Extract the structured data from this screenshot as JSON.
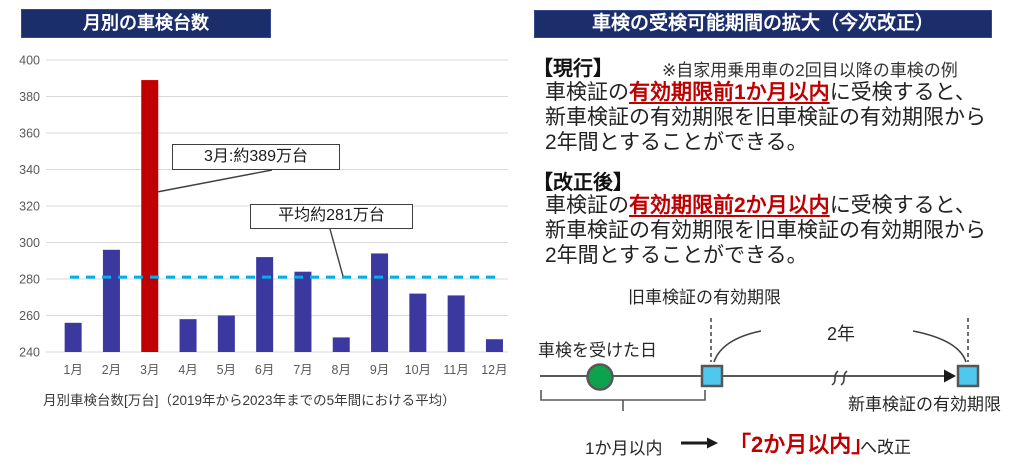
{
  "left_panel": {
    "title": "月別の車検台数",
    "caption": "月別車検台数[万台]（2019年から2023年までの5年間における平均）",
    "annotations": {
      "march_callout": "3月:約389万台",
      "average_callout": "平均約281万台"
    }
  },
  "chart_data": {
    "type": "bar",
    "title": "月別の車検台数",
    "categories": [
      "1月",
      "2月",
      "3月",
      "4月",
      "5月",
      "6月",
      "7月",
      "8月",
      "9月",
      "10月",
      "11月",
      "12月"
    ],
    "values": [
      256,
      296,
      389,
      258,
      260,
      292,
      284,
      248,
      294,
      272,
      271,
      247
    ],
    "highlight_index": 2,
    "average_line": {
      "value": 281,
      "label": "平均約281万台",
      "color": "#00B0F0"
    },
    "highlight_label": "3月:約389万台",
    "xlabel": "",
    "ylabel": "月別車検台数[万台]",
    "ylim": [
      240,
      400
    ],
    "ytick_step": 20,
    "grid": true,
    "bar_color": "#3B38A0",
    "highlight_color": "#C00000",
    "axis_text_color": "#595959"
  },
  "right_panel": {
    "title": "車検の受検可能期間の拡大（今次改正）",
    "note": "※自家用乗用車の2回目以降の車検の例",
    "current": {
      "heading": "【現行】",
      "line1_pre": "車検証の",
      "line1_red": "有効期限前1か月以内",
      "line1_post": "に受検すると、",
      "line2": "新車検証の有効期限を旧車検証の有効期限から",
      "line3": "2年間とすることができる。"
    },
    "revised": {
      "heading": "【改正後】",
      "line1_pre": "車検証の",
      "line1_red": "有効期限前2か月以内",
      "line1_post": "に受検すると、",
      "line2": "新車検証の有効期限を旧車検証の有効期限から",
      "line3": "2年間とすることができる。"
    },
    "timeline": {
      "old_expiry_label": "旧車検証の有効期限",
      "inspection_day_label": "車検を受けた日",
      "two_years_label": "2年",
      "new_expiry_label": "新車検証の有効期限",
      "before_label": "1か月以内",
      "after_label": "「2か月以内」",
      "after_suffix": "へ改正"
    }
  },
  "colors": {
    "navy": "#1b2d6b",
    "bar_blue": "#3B38A0",
    "highlight_red": "#C00000",
    "average_cyan": "#00B0F0",
    "marker_green": "#0FA24E",
    "marker_cyan": "#4FC8F0",
    "marker_border": "#575757"
  }
}
